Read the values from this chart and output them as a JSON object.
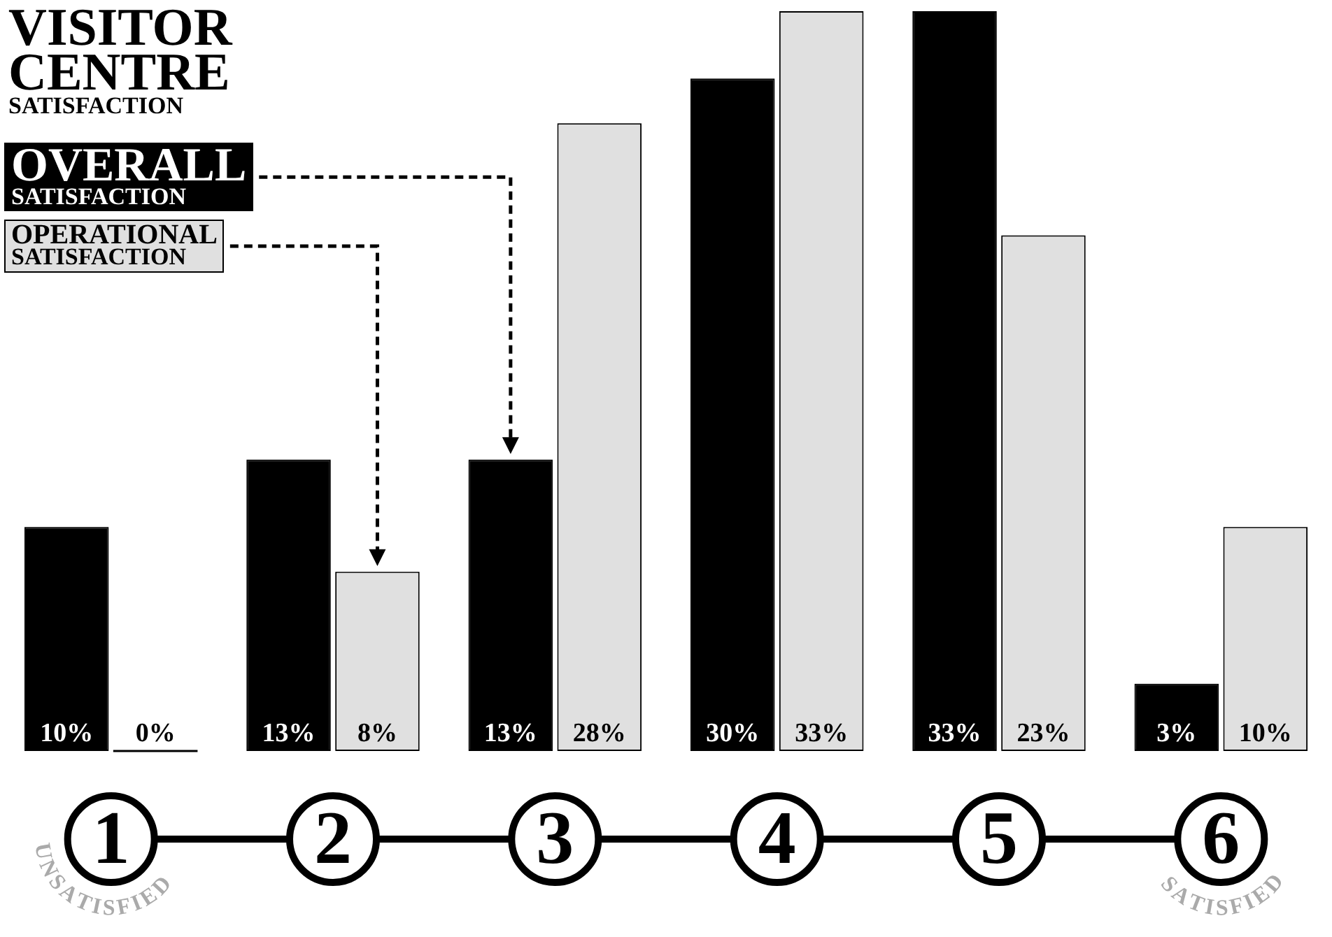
{
  "chart_data": {
    "type": "bar",
    "title": "VISITOR CENTRE SATISFACTION",
    "categories": [
      "1",
      "2",
      "3",
      "4",
      "5",
      "6"
    ],
    "series": [
      {
        "name": "OVERALL SATISFACTION",
        "color": "#000000",
        "values": [
          10,
          13,
          13,
          30,
          33,
          3
        ],
        "value_labels": [
          "10%",
          "13%",
          "13%",
          "30%",
          "33%",
          "3%"
        ]
      },
      {
        "name": "OPERATIONAL SATISFACTION",
        "color": "#e0e0e0",
        "values": [
          0,
          8,
          28,
          33,
          23,
          10
        ],
        "value_labels": [
          "0%",
          "8%",
          "28%",
          "33%",
          "23%",
          "10%"
        ]
      }
    ],
    "legend": "top left",
    "annotations": [
      "UNSATISFIED",
      "SATISFIED"
    ]
  }
}
